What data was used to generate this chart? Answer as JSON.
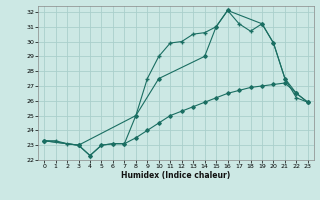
{
  "title": "",
  "xlabel": "Humidex (Indice chaleur)",
  "bg_color": "#cce8e4",
  "grid_color": "#aacfcc",
  "line_color": "#1a6e62",
  "xlim": [
    -0.5,
    23.5
  ],
  "ylim": [
    22,
    32.4
  ],
  "xticks": [
    0,
    1,
    2,
    3,
    4,
    5,
    6,
    7,
    8,
    9,
    10,
    11,
    12,
    13,
    14,
    15,
    16,
    17,
    18,
    19,
    20,
    21,
    22,
    23
  ],
  "yticks": [
    22,
    23,
    24,
    25,
    26,
    27,
    28,
    29,
    30,
    31,
    32
  ],
  "line1_x": [
    0,
    1,
    2,
    3,
    4,
    5,
    6,
    7,
    8,
    9,
    10,
    11,
    12,
    13,
    14,
    15,
    16,
    17,
    18,
    19,
    20,
    21,
    22,
    23
  ],
  "line1_y": [
    23.3,
    23.3,
    23.1,
    23.0,
    22.3,
    23.0,
    23.1,
    23.1,
    25.0,
    27.5,
    29.0,
    29.9,
    30.0,
    30.5,
    30.6,
    31.0,
    32.1,
    31.2,
    30.7,
    31.2,
    29.9,
    27.5,
    26.2,
    25.9
  ],
  "line2_x": [
    0,
    3,
    8,
    10,
    14,
    15,
    16,
    19,
    20,
    21,
    22,
    23
  ],
  "line2_y": [
    23.3,
    23.0,
    25.0,
    27.5,
    29.0,
    31.0,
    32.1,
    31.2,
    29.9,
    27.5,
    26.5,
    25.9
  ],
  "line3_x": [
    0,
    3,
    4,
    5,
    6,
    7,
    8,
    9,
    10,
    11,
    12,
    13,
    14,
    15,
    16,
    17,
    18,
    19,
    20,
    21,
    22,
    23
  ],
  "line3_y": [
    23.3,
    23.0,
    22.3,
    23.0,
    23.1,
    23.1,
    23.5,
    24.0,
    24.5,
    25.0,
    25.3,
    25.6,
    25.9,
    26.2,
    26.5,
    26.7,
    26.9,
    27.0,
    27.1,
    27.2,
    26.5,
    25.9
  ]
}
